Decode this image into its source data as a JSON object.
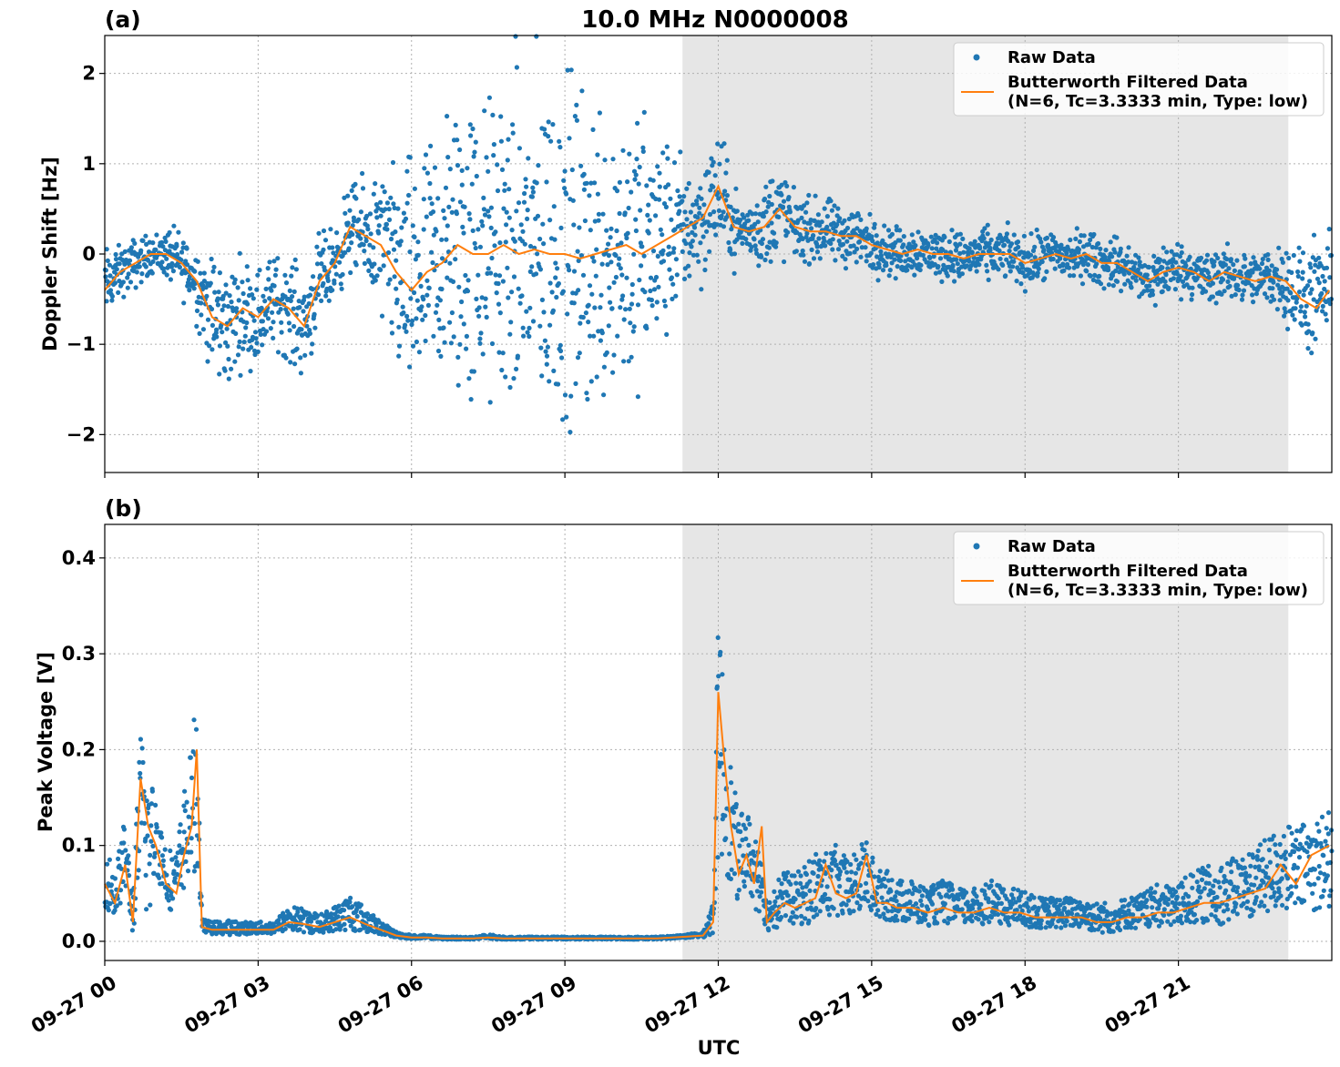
{
  "figure": {
    "title": "10.0 MHz N0000008",
    "xlabel": "UTC"
  },
  "colors": {
    "raw": "#1f77b4",
    "filtered": "#ff7f0e",
    "shade": "#e6e6e6"
  },
  "legend": {
    "raw": "Raw Data",
    "filtered_line1": "Butterworth Filtered Data",
    "filtered_line2": "(N=6, Tc=3.3333 min, Type: low)"
  },
  "chart_data": [
    {
      "type": "scatter",
      "panel_label": "(a)",
      "ylabel": "Doppler Shift [Hz]",
      "xlim_hours": [
        0,
        24
      ],
      "ylim": [
        -2.42,
        2.42
      ],
      "yticks": [
        2,
        1,
        0,
        -1,
        -2
      ],
      "ytick_labels": [
        "2",
        "1",
        "0",
        "−1",
        "−2"
      ],
      "xtick_labels": [
        "09-27 00",
        "09-27 03",
        "09-27 06",
        "09-27 09",
        "09-27 12",
        "09-27 15",
        "09-27 18",
        "09-27 21"
      ],
      "shaded_region_hours": [
        11.3,
        23.15
      ],
      "grid": true,
      "legend_position": "top-right",
      "series": [
        {
          "name": "Raw Data",
          "kind": "points",
          "x_hours": [
            0.0,
            0.3,
            0.6,
            0.9,
            1.2,
            1.5,
            1.8,
            2.1,
            2.4,
            2.7,
            3.0,
            3.3,
            3.6,
            3.9,
            4.2,
            4.5,
            4.8,
            5.1,
            5.4,
            5.7,
            6.0,
            6.3,
            6.6,
            6.9,
            7.2,
            7.5,
            7.8,
            8.1,
            8.4,
            8.7,
            9.0,
            9.3,
            9.6,
            9.9,
            10.2,
            10.5,
            10.8,
            11.1,
            11.4,
            11.7,
            12.0,
            12.3,
            12.6,
            12.9,
            13.2,
            13.5,
            13.8,
            14.1,
            14.4,
            14.7,
            15.0,
            15.3,
            15.6,
            15.9,
            16.2,
            16.5,
            16.8,
            17.1,
            17.4,
            17.7,
            18.0,
            18.3,
            18.6,
            18.9,
            19.2,
            19.5,
            19.8,
            20.1,
            20.4,
            20.7,
            21.0,
            21.3,
            21.6,
            21.9,
            22.2,
            22.5,
            22.8,
            23.1,
            23.4,
            23.7,
            23.95
          ],
          "center": [
            -0.35,
            -0.2,
            -0.1,
            0.0,
            0.0,
            -0.1,
            -0.3,
            -0.7,
            -0.8,
            -0.6,
            -0.7,
            -0.5,
            -0.6,
            -0.8,
            -0.3,
            -0.1,
            0.3,
            0.2,
            0.1,
            -0.2,
            -0.4,
            -0.2,
            -0.1,
            0.1,
            0.0,
            0.0,
            0.1,
            0.0,
            0.05,
            0.0,
            0.0,
            -0.05,
            0.0,
            0.05,
            0.1,
            0.0,
            0.1,
            0.2,
            0.3,
            0.4,
            0.7,
            0.3,
            0.25,
            0.3,
            0.5,
            0.3,
            0.25,
            0.25,
            0.2,
            0.2,
            0.1,
            0.05,
            0.0,
            0.05,
            0.0,
            0.0,
            -0.05,
            0.0,
            0.0,
            0.0,
            -0.1,
            -0.05,
            0.0,
            -0.05,
            0.0,
            -0.1,
            -0.1,
            -0.2,
            -0.3,
            -0.2,
            -0.15,
            -0.2,
            -0.3,
            -0.2,
            -0.25,
            -0.3,
            -0.25,
            -0.3,
            -0.5,
            -0.5,
            -0.4
          ],
          "spread": [
            0.3,
            0.2,
            0.2,
            0.15,
            0.2,
            0.25,
            0.3,
            0.5,
            0.5,
            0.4,
            0.4,
            0.35,
            0.4,
            0.4,
            0.35,
            0.3,
            0.35,
            0.4,
            0.6,
            0.8,
            1.0,
            1.0,
            1.1,
            1.3,
            1.3,
            1.2,
            1.3,
            1.4,
            1.4,
            1.4,
            1.4,
            1.3,
            1.3,
            1.2,
            1.2,
            1.1,
            1.0,
            0.7,
            0.5,
            0.5,
            0.5,
            0.3,
            0.2,
            0.4,
            0.4,
            0.25,
            0.25,
            0.25,
            0.25,
            0.25,
            0.22,
            0.2,
            0.2,
            0.2,
            0.2,
            0.2,
            0.2,
            0.2,
            0.2,
            0.2,
            0.2,
            0.2,
            0.2,
            0.2,
            0.2,
            0.2,
            0.2,
            0.2,
            0.2,
            0.25,
            0.2,
            0.2,
            0.25,
            0.2,
            0.2,
            0.2,
            0.25,
            0.3,
            0.4,
            0.45,
            0.4
          ]
        },
        {
          "name": "Butterworth Filtered Data (N=6, Tc=3.3333 min, Type: low)",
          "kind": "line",
          "x_hours": [
            0.0,
            0.3,
            0.6,
            0.9,
            1.2,
            1.5,
            1.8,
            2.1,
            2.4,
            2.7,
            3.0,
            3.3,
            3.6,
            3.9,
            4.2,
            4.5,
            4.8,
            5.1,
            5.4,
            5.7,
            6.0,
            6.3,
            6.6,
            6.9,
            7.2,
            7.5,
            7.8,
            8.1,
            8.4,
            8.7,
            9.0,
            9.3,
            9.6,
            9.9,
            10.2,
            10.5,
            10.8,
            11.1,
            11.4,
            11.7,
            12.0,
            12.3,
            12.6,
            12.9,
            13.2,
            13.5,
            13.8,
            14.1,
            14.4,
            14.7,
            15.0,
            15.3,
            15.6,
            15.9,
            16.2,
            16.5,
            16.8,
            17.1,
            17.4,
            17.7,
            18.0,
            18.3,
            18.6,
            18.9,
            19.2,
            19.5,
            19.8,
            20.1,
            20.4,
            20.7,
            21.0,
            21.3,
            21.6,
            21.9,
            22.2,
            22.5,
            22.8,
            23.1,
            23.4,
            23.7,
            23.95
          ],
          "values": [
            -0.4,
            -0.2,
            -0.1,
            0.0,
            0.0,
            -0.1,
            -0.3,
            -0.7,
            -0.8,
            -0.6,
            -0.7,
            -0.5,
            -0.6,
            -0.8,
            -0.3,
            -0.1,
            0.3,
            0.2,
            0.1,
            -0.2,
            -0.4,
            -0.2,
            -0.1,
            0.1,
            0.0,
            0.0,
            0.1,
            0.0,
            0.05,
            0.0,
            0.0,
            -0.05,
            0.0,
            0.05,
            0.1,
            0.0,
            0.1,
            0.2,
            0.3,
            0.4,
            0.75,
            0.3,
            0.25,
            0.3,
            0.5,
            0.3,
            0.25,
            0.25,
            0.2,
            0.2,
            0.1,
            0.05,
            0.0,
            0.05,
            0.0,
            0.0,
            -0.05,
            0.0,
            0.0,
            0.0,
            -0.1,
            -0.05,
            0.0,
            -0.05,
            0.0,
            -0.1,
            -0.1,
            -0.2,
            -0.3,
            -0.2,
            -0.15,
            -0.2,
            -0.3,
            -0.2,
            -0.25,
            -0.3,
            -0.25,
            -0.3,
            -0.5,
            -0.6,
            -0.4
          ]
        }
      ]
    },
    {
      "type": "scatter",
      "panel_label": "(b)",
      "ylabel": "Peak Voltage [V]",
      "xlim_hours": [
        0,
        24
      ],
      "ylim": [
        -0.02,
        0.435
      ],
      "yticks": [
        0.4,
        0.3,
        0.2,
        0.1,
        0.0
      ],
      "ytick_labels": [
        "0.4",
        "0.3",
        "0.2",
        "0.1",
        "0.0"
      ],
      "xtick_labels": [
        "09-27 00",
        "09-27 03",
        "09-27 06",
        "09-27 09",
        "09-27 12",
        "09-27 15",
        "09-27 18",
        "09-27 21"
      ],
      "shaded_region_hours": [
        11.3,
        23.15
      ],
      "grid": true,
      "legend_position": "top-right",
      "series": [
        {
          "name": "Raw Data",
          "kind": "points",
          "x_hours": [
            0.0,
            0.2,
            0.4,
            0.55,
            0.7,
            0.85,
            1.0,
            1.2,
            1.4,
            1.55,
            1.7,
            1.8,
            1.9,
            2.1,
            2.4,
            2.7,
            3.0,
            3.3,
            3.6,
            3.9,
            4.2,
            4.5,
            4.8,
            5.1,
            5.4,
            5.7,
            6.0,
            6.3,
            6.6,
            6.9,
            7.2,
            7.5,
            7.8,
            8.1,
            8.4,
            8.7,
            9.0,
            9.3,
            9.6,
            9.9,
            10.2,
            10.5,
            10.8,
            11.1,
            11.4,
            11.7,
            11.9,
            12.0,
            12.1,
            12.25,
            12.4,
            12.55,
            12.7,
            12.85,
            12.95,
            13.1,
            13.3,
            13.5,
            13.7,
            13.9,
            14.1,
            14.3,
            14.5,
            14.7,
            14.9,
            15.1,
            15.3,
            15.5,
            15.8,
            16.1,
            16.4,
            16.7,
            17.0,
            17.3,
            17.6,
            17.9,
            18.2,
            18.5,
            18.8,
            19.1,
            19.4,
            19.7,
            20.0,
            20.3,
            20.6,
            20.9,
            21.2,
            21.5,
            21.8,
            22.1,
            22.4,
            22.7,
            23.0,
            23.3,
            23.6,
            23.95
          ],
          "center": [
            0.06,
            0.04,
            0.08,
            0.02,
            0.12,
            0.07,
            0.1,
            0.06,
            0.05,
            0.09,
            0.12,
            0.14,
            0.015,
            0.012,
            0.012,
            0.012,
            0.012,
            0.012,
            0.02,
            0.018,
            0.015,
            0.02,
            0.025,
            0.018,
            0.012,
            0.006,
            0.004,
            0.004,
            0.003,
            0.003,
            0.003,
            0.004,
            0.003,
            0.003,
            0.003,
            0.003,
            0.003,
            0.003,
            0.003,
            0.003,
            0.003,
            0.003,
            0.003,
            0.004,
            0.005,
            0.006,
            0.02,
            0.18,
            0.15,
            0.1,
            0.07,
            0.09,
            0.06,
            0.06,
            0.02,
            0.03,
            0.04,
            0.035,
            0.04,
            0.045,
            0.05,
            0.05,
            0.045,
            0.05,
            0.06,
            0.04,
            0.04,
            0.035,
            0.035,
            0.03,
            0.035,
            0.03,
            0.03,
            0.035,
            0.03,
            0.03,
            0.025,
            0.025,
            0.025,
            0.025,
            0.02,
            0.02,
            0.025,
            0.025,
            0.03,
            0.03,
            0.035,
            0.04,
            0.04,
            0.045,
            0.05,
            0.055,
            0.065,
            0.06,
            0.065,
            0.07
          ],
          "spread": [
            0.05,
            0.04,
            0.06,
            0.03,
            0.12,
            0.14,
            0.06,
            0.05,
            0.05,
            0.08,
            0.1,
            0.15,
            0.01,
            0.01,
            0.012,
            0.01,
            0.01,
            0.01,
            0.02,
            0.02,
            0.015,
            0.02,
            0.03,
            0.02,
            0.01,
            0.005,
            0.003,
            0.003,
            0.002,
            0.002,
            0.002,
            0.004,
            0.002,
            0.002,
            0.002,
            0.002,
            0.002,
            0.002,
            0.002,
            0.002,
            0.002,
            0.002,
            0.002,
            0.002,
            0.003,
            0.004,
            0.03,
            0.2,
            0.15,
            0.1,
            0.07,
            0.06,
            0.06,
            0.07,
            0.02,
            0.04,
            0.04,
            0.04,
            0.05,
            0.06,
            0.05,
            0.06,
            0.05,
            0.05,
            0.06,
            0.04,
            0.04,
            0.035,
            0.035,
            0.03,
            0.035,
            0.03,
            0.03,
            0.035,
            0.03,
            0.03,
            0.025,
            0.025,
            0.025,
            0.025,
            0.025,
            0.025,
            0.025,
            0.03,
            0.035,
            0.035,
            0.04,
            0.045,
            0.05,
            0.05,
            0.055,
            0.06,
            0.07,
            0.07,
            0.075,
            0.08
          ]
        },
        {
          "name": "Butterworth Filtered Data (N=6, Tc=3.3333 min, Type: low)",
          "kind": "line",
          "x_hours": [
            0.0,
            0.2,
            0.4,
            0.55,
            0.7,
            0.85,
            1.0,
            1.2,
            1.4,
            1.55,
            1.7,
            1.8,
            1.9,
            2.1,
            2.4,
            2.7,
            3.0,
            3.3,
            3.6,
            3.9,
            4.2,
            4.5,
            4.8,
            5.1,
            5.4,
            5.7,
            6.0,
            6.3,
            6.6,
            6.9,
            7.2,
            7.5,
            7.8,
            8.1,
            8.4,
            8.7,
            9.0,
            9.3,
            9.6,
            9.9,
            10.2,
            10.5,
            10.8,
            11.1,
            11.4,
            11.7,
            11.9,
            12.0,
            12.1,
            12.25,
            12.4,
            12.55,
            12.7,
            12.85,
            12.95,
            13.1,
            13.3,
            13.5,
            13.7,
            13.9,
            14.1,
            14.3,
            14.5,
            14.7,
            14.9,
            15.1,
            15.3,
            15.5,
            15.8,
            16.1,
            16.4,
            16.7,
            17.0,
            17.3,
            17.6,
            17.9,
            18.2,
            18.5,
            18.8,
            19.1,
            19.4,
            19.7,
            20.0,
            20.3,
            20.6,
            20.9,
            21.2,
            21.5,
            21.8,
            22.1,
            22.4,
            22.7,
            23.0,
            23.3,
            23.6,
            23.95
          ],
          "values": [
            0.06,
            0.04,
            0.08,
            0.02,
            0.17,
            0.12,
            0.1,
            0.06,
            0.05,
            0.09,
            0.12,
            0.2,
            0.015,
            0.012,
            0.012,
            0.012,
            0.012,
            0.012,
            0.02,
            0.018,
            0.015,
            0.02,
            0.025,
            0.018,
            0.012,
            0.006,
            0.004,
            0.004,
            0.003,
            0.003,
            0.003,
            0.004,
            0.003,
            0.003,
            0.003,
            0.003,
            0.003,
            0.003,
            0.003,
            0.003,
            0.003,
            0.003,
            0.003,
            0.004,
            0.005,
            0.006,
            0.02,
            0.26,
            0.2,
            0.12,
            0.07,
            0.09,
            0.06,
            0.12,
            0.02,
            0.03,
            0.04,
            0.035,
            0.04,
            0.045,
            0.08,
            0.05,
            0.045,
            0.05,
            0.09,
            0.04,
            0.04,
            0.035,
            0.035,
            0.03,
            0.035,
            0.03,
            0.03,
            0.035,
            0.03,
            0.03,
            0.025,
            0.025,
            0.025,
            0.025,
            0.02,
            0.02,
            0.025,
            0.025,
            0.03,
            0.03,
            0.035,
            0.04,
            0.04,
            0.045,
            0.05,
            0.055,
            0.08,
            0.06,
            0.09,
            0.1
          ]
        }
      ]
    }
  ]
}
